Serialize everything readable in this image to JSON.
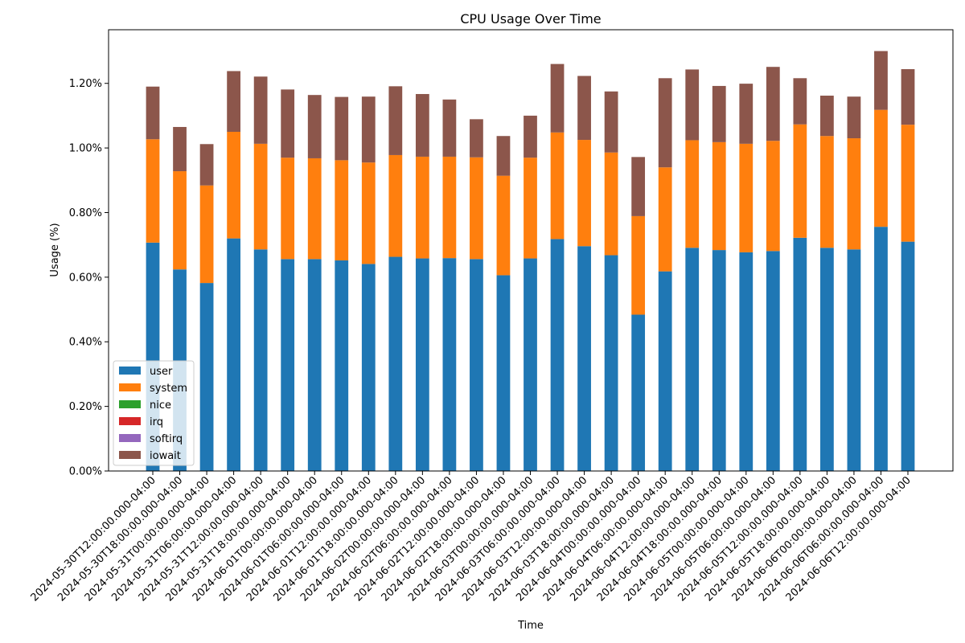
{
  "chart_data": {
    "type": "bar",
    "stacked": true,
    "title": "CPU Usage Over Time",
    "xlabel": "Time",
    "ylabel": "Usage (%)",
    "ylim": [
      0,
      1.366
    ],
    "yticks": [
      0.0,
      0.2,
      0.4,
      0.6,
      0.8,
      1.0,
      1.2
    ],
    "ytick_format": "%.2f%%",
    "legend": "lower-left",
    "grid": false,
    "categories": [
      "2024-05-30T12:00:00.000-04:00",
      "2024-05-30T18:00:00.000-04:00",
      "2024-05-31T00:00:00.000-04:00",
      "2024-05-31T06:00:00.000-04:00",
      "2024-05-31T12:00:00.000-04:00",
      "2024-05-31T18:00:00.000-04:00",
      "2024-06-01T00:00:00.000-04:00",
      "2024-06-01T06:00:00.000-04:00",
      "2024-06-01T12:00:00.000-04:00",
      "2024-06-01T18:00:00.000-04:00",
      "2024-06-02T00:00:00.000-04:00",
      "2024-06-02T06:00:00.000-04:00",
      "2024-06-02T12:00:00.000-04:00",
      "2024-06-02T18:00:00.000-04:00",
      "2024-06-03T00:00:00.000-04:00",
      "2024-06-03T06:00:00.000-04:00",
      "2024-06-03T12:00:00.000-04:00",
      "2024-06-03T18:00:00.000-04:00",
      "2024-06-04T00:00:00.000-04:00",
      "2024-06-04T06:00:00.000-04:00",
      "2024-06-04T12:00:00.000-04:00",
      "2024-06-04T18:00:00.000-04:00",
      "2024-06-05T00:00:00.000-04:00",
      "2024-06-05T06:00:00.000-04:00",
      "2024-06-05T12:00:00.000-04:00",
      "2024-06-05T18:00:00.000-04:00",
      "2024-06-06T00:00:00.000-04:00",
      "2024-06-06T06:00:00.000-04:00",
      "2024-06-06T12:00:00.000-04:00"
    ],
    "series": [
      {
        "name": "user",
        "color": "#1f77b4",
        "values": [
          0.707,
          0.624,
          0.582,
          0.72,
          0.686,
          0.656,
          0.656,
          0.652,
          0.641,
          0.663,
          0.658,
          0.659,
          0.656,
          0.606,
          0.658,
          0.718,
          0.696,
          0.668,
          0.484,
          0.618,
          0.691,
          0.684,
          0.677,
          0.681,
          0.722,
          0.691,
          0.686,
          0.756,
          0.71
        ]
      },
      {
        "name": "system",
        "color": "#ff7f0e",
        "values": [
          0.32,
          0.304,
          0.302,
          0.33,
          0.327,
          0.314,
          0.312,
          0.31,
          0.314,
          0.315,
          0.315,
          0.314,
          0.315,
          0.308,
          0.312,
          0.33,
          0.329,
          0.318,
          0.305,
          0.322,
          0.333,
          0.334,
          0.336,
          0.341,
          0.351,
          0.346,
          0.344,
          0.362,
          0.362
        ]
      },
      {
        "name": "nice",
        "color": "#2ca02c",
        "values": [
          0,
          0,
          0,
          0,
          0,
          0,
          0,
          0,
          0,
          0,
          0,
          0,
          0,
          0,
          0,
          0,
          0,
          0,
          0,
          0,
          0,
          0,
          0,
          0,
          0,
          0,
          0,
          0,
          0
        ]
      },
      {
        "name": "irq",
        "color": "#d62728",
        "values": [
          0,
          0,
          0,
          0,
          0,
          0,
          0,
          0,
          0,
          0,
          0,
          0,
          0,
          0,
          0,
          0,
          0,
          0,
          0,
          0,
          0,
          0,
          0,
          0,
          0,
          0,
          0,
          0,
          0
        ]
      },
      {
        "name": "softirq",
        "color": "#9467bd",
        "values": [
          0,
          0,
          0,
          0,
          0,
          0,
          0,
          0,
          0,
          0,
          0,
          0,
          0,
          0,
          0,
          0,
          0,
          0,
          0,
          0,
          0,
          0,
          0,
          0,
          0,
          0,
          0,
          0,
          0
        ]
      },
      {
        "name": "iowait",
        "color": "#8c564b",
        "values": [
          0.163,
          0.137,
          0.128,
          0.188,
          0.208,
          0.211,
          0.196,
          0.196,
          0.204,
          0.213,
          0.194,
          0.177,
          0.118,
          0.123,
          0.13,
          0.212,
          0.198,
          0.189,
          0.183,
          0.276,
          0.219,
          0.174,
          0.186,
          0.229,
          0.143,
          0.125,
          0.129,
          0.182,
          0.172
        ]
      }
    ]
  }
}
